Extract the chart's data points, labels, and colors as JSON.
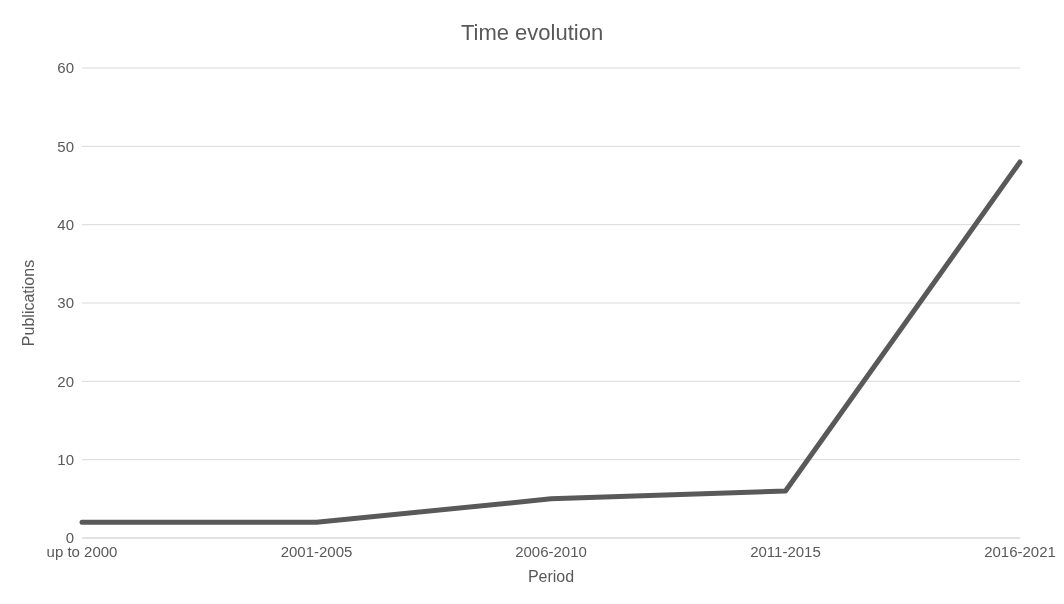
{
  "chart_data": {
    "type": "line",
    "title": "Time evolution",
    "xlabel": "Period",
    "ylabel": "Publications",
    "categories": [
      "up to 2000",
      "2001-2005",
      "2006-2010",
      "2011-2015",
      "2016-2021"
    ],
    "series": [
      {
        "color": "#595959",
        "values": [
          2,
          2,
          5,
          6,
          48
        ]
      }
    ],
    "ylim": [
      0,
      60
    ],
    "yticks": [
      0,
      10,
      20,
      30,
      40,
      50,
      60
    ],
    "grid": "y",
    "marker": "none",
    "line_style": "solid"
  }
}
